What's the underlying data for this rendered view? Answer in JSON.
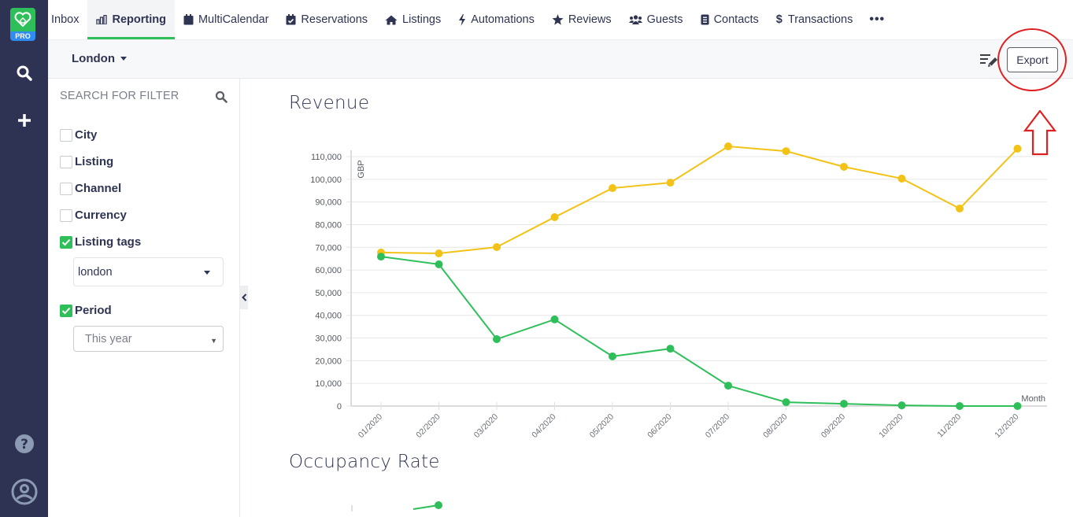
{
  "app": {
    "logo_badge": "PRO",
    "rail_icons": [
      "search-icon",
      "plus-icon",
      "help-icon",
      "user-avatar-icon"
    ]
  },
  "topnav": {
    "items": [
      {
        "label": "Inbox",
        "icon": "inbox-icon",
        "active": false
      },
      {
        "label": "Reporting",
        "icon": "bar-chart-icon",
        "active": true
      },
      {
        "label": "MultiCalendar",
        "icon": "calendar-icon",
        "active": false
      },
      {
        "label": "Reservations",
        "icon": "calendar-check-icon",
        "active": false
      },
      {
        "label": "Listings",
        "icon": "home-icon",
        "active": false
      },
      {
        "label": "Automations",
        "icon": "bolt-icon",
        "active": false
      },
      {
        "label": "Reviews",
        "icon": "star-icon",
        "active": false
      },
      {
        "label": "Guests",
        "icon": "users-icon",
        "active": false
      },
      {
        "label": "Contacts",
        "icon": "address-book-icon",
        "active": false
      },
      {
        "label": "Transactions",
        "icon": "dollar-icon",
        "active": false
      }
    ],
    "more_label": "•••"
  },
  "subheader": {
    "city": "London",
    "export_label": "Export"
  },
  "filters": {
    "search_placeholder": "SEARCH FOR FILTER",
    "items": [
      {
        "label": "City",
        "checked": false
      },
      {
        "label": "Listing",
        "checked": false
      },
      {
        "label": "Channel",
        "checked": false
      },
      {
        "label": "Currency",
        "checked": false
      },
      {
        "label": "Listing tags",
        "checked": true
      },
      {
        "label": "Period",
        "checked": true
      }
    ],
    "listing_tags_value": "london",
    "period_value": "This year"
  },
  "colors": {
    "accent_green": "#2fbf5a",
    "series_yellow": "#f2c316",
    "series_green": "#2fbf5a",
    "rail_bg": "#2e3354",
    "annotation_red": "#e02020"
  },
  "sections": {
    "revenue_title": "Revenue",
    "occupancy_title": "Occupancy Rate"
  },
  "chart_data": {
    "type": "line",
    "title": "Revenue",
    "xlabel": "Month",
    "ylabel": "GBP",
    "ylim": [
      0,
      110000
    ],
    "yticks": [
      0,
      10000,
      20000,
      30000,
      40000,
      50000,
      60000,
      70000,
      80000,
      90000,
      100000,
      110000
    ],
    "ytick_labels": [
      "0",
      "10,000",
      "20,000",
      "30,000",
      "40,000",
      "50,000",
      "60,000",
      "70,000",
      "80,000",
      "90,000",
      "100,000",
      "110,000"
    ],
    "grid": true,
    "categories": [
      "01/2020",
      "02/2020",
      "03/2020",
      "04/2020",
      "05/2020",
      "06/2020",
      "07/2020",
      "08/2020",
      "09/2020",
      "10/2020",
      "11/2020",
      "12/2020"
    ],
    "series": [
      {
        "name": "yellow",
        "color": "#f2c316",
        "values": [
          67700,
          67300,
          70100,
          83300,
          96100,
          98500,
          114500,
          112400,
          105500,
          100300,
          87100,
          113500
        ]
      },
      {
        "name": "green",
        "color": "#2fbf5a",
        "values": [
          65900,
          62500,
          29500,
          38200,
          21900,
          25300,
          9000,
          1700,
          1000,
          300,
          0,
          0
        ]
      }
    ]
  }
}
